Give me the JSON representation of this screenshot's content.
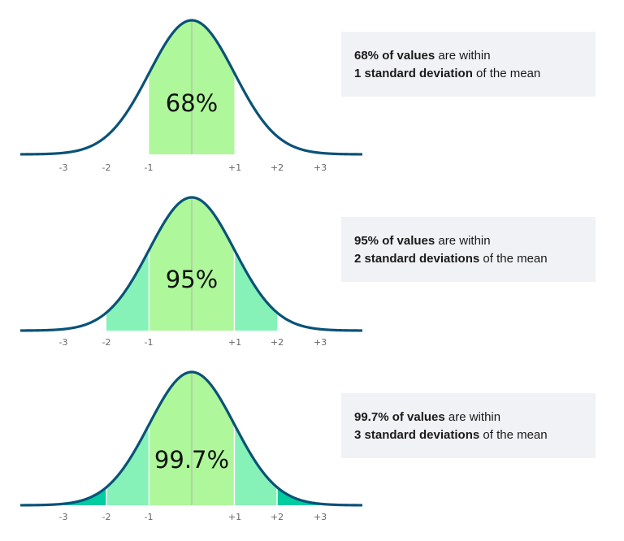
{
  "chart_data": [
    {
      "type": "area",
      "title": "68% of values are within 1 standard deviation of the mean",
      "center_label": "68%",
      "xlabel": "",
      "ylabel": "",
      "tick_labels": [
        "-3",
        "-2",
        "-1",
        "+1",
        "+2",
        "+3"
      ],
      "x_range": [
        -4,
        4
      ],
      "distribution": "normal",
      "shaded_regions": [
        {
          "from": -1,
          "to": 1,
          "color": "#aef79a",
          "percent": 68
        }
      ],
      "grid": false
    },
    {
      "type": "area",
      "title": "95% of values are within 2 standard deviations of the mean",
      "center_label": "95%",
      "xlabel": "",
      "ylabel": "",
      "tick_labels": [
        "-3",
        "-2",
        "-1",
        "+1",
        "+2",
        "+3"
      ],
      "x_range": [
        -4,
        4
      ],
      "distribution": "normal",
      "shaded_regions": [
        {
          "from": -2,
          "to": -1,
          "color": "#86f2b7"
        },
        {
          "from": -1,
          "to": 1,
          "color": "#aef79a"
        },
        {
          "from": 1,
          "to": 2,
          "color": "#86f2b7"
        }
      ],
      "grid": false
    },
    {
      "type": "area",
      "title": "99.7% of values are within 3 standard deviations of the mean",
      "center_label": "99.7%",
      "xlabel": "",
      "ylabel": "",
      "tick_labels": [
        "-3",
        "-2",
        "-1",
        "+1",
        "+2",
        "+3"
      ],
      "x_range": [
        -4,
        4
      ],
      "distribution": "normal",
      "shaded_regions": [
        {
          "from": -3,
          "to": -2,
          "color": "#00cc9f"
        },
        {
          "from": -2,
          "to": -1,
          "color": "#86f2b7"
        },
        {
          "from": -1,
          "to": 1,
          "color": "#aef79a"
        },
        {
          "from": 1,
          "to": 2,
          "color": "#86f2b7"
        },
        {
          "from": 2,
          "to": 3,
          "color": "#00cc9f"
        }
      ],
      "grid": false
    }
  ],
  "colors": {
    "curve": "#0a5277",
    "mean_line": "#b8b8b8",
    "band1": "#aef79a",
    "band2": "#86f2b7",
    "band3": "#00cc9f",
    "info_bg": "#f1f2f6"
  },
  "panels": [
    {
      "center_label": "68%",
      "ticks": [
        "-3",
        "-2",
        "-1",
        "+1",
        "+2",
        "+3"
      ],
      "info": {
        "bold1": "68% of values",
        "text1": " are within",
        "bold2": "1 standard deviation",
        "text2": " of the mean"
      }
    },
    {
      "center_label": "95%",
      "ticks": [
        "-3",
        "-2",
        "-1",
        "+1",
        "+2",
        "+3"
      ],
      "info": {
        "bold1": "95% of values",
        "text1": " are within",
        "bold2": "2 standard deviations",
        "text2": " of the mean"
      }
    },
    {
      "center_label": "99.7%",
      "ticks": [
        "-3",
        "-2",
        "-1",
        "+1",
        "+2",
        "+3"
      ],
      "info": {
        "bold1": "99.7% of values",
        "text1": " are within",
        "bold2": "3 standard deviations",
        "text2": " of the mean"
      }
    }
  ]
}
